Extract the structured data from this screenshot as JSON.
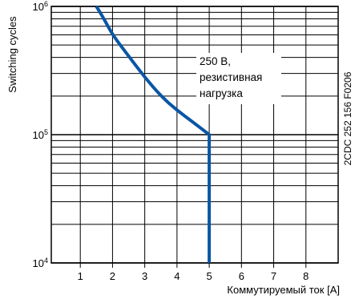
{
  "chart_data": {
    "type": "line",
    "xlabel": "Коммутируемый ток [A]",
    "ylabel": "Switching cycles",
    "x_ticks": [
      "1",
      "2",
      "3",
      "4",
      "5",
      "6",
      "7",
      "8"
    ],
    "y_ticks": [
      {
        "base": "10",
        "exp": "4",
        "value": 10000
      },
      {
        "base": "10",
        "exp": "5",
        "value": 100000
      },
      {
        "base": "10",
        "exp": "6",
        "value": 1000000
      }
    ],
    "xlim": [
      0.1,
      9
    ],
    "ylim": [
      10000,
      1000000
    ],
    "y_scale": "log",
    "grid": true,
    "annotation_lines": [
      "250 В,",
      "резистивная",
      "нагрузка"
    ],
    "side_code": "2CDC 252 156 F0206",
    "line_color": "#0a56a5",
    "series": [
      {
        "x": [
          1.5,
          1.7,
          2.0,
          2.5,
          3.0,
          3.5,
          4.0,
          4.5,
          5.0,
          5.0
        ],
        "y": [
          1000000,
          830000,
          600000,
          410000,
          280000,
          200000,
          155000,
          125000,
          100000,
          10000
        ]
      }
    ]
  }
}
